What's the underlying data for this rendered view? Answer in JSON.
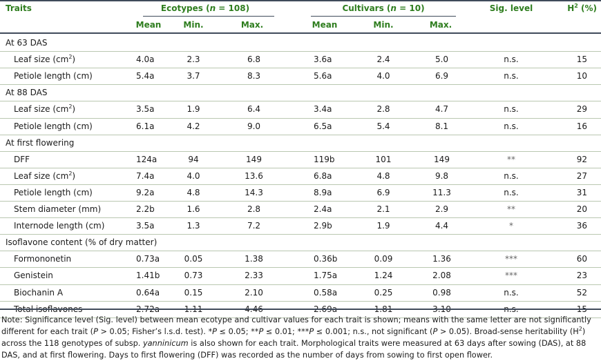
{
  "header": {
    "traits": "Traits",
    "ecotypes": "Ecotypes (n = 108)",
    "cultivars": "Cultivars (n = 10)",
    "sig": "Sig. level",
    "h2": "H2 (%)",
    "mean": "Mean",
    "min": "Min.",
    "max": "Max."
  },
  "sections": [
    {
      "title": "At 63 DAS",
      "rows": [
        {
          "trait": "Leaf size (cm2)",
          "e_mean": "4.0a",
          "e_min": "2.3",
          "e_max": "6.8",
          "c_mean": "3.6a",
          "c_min": "2.4",
          "c_max": "5.0",
          "sig": "n.s.",
          "h2": "15"
        },
        {
          "trait": "Petiole length (cm)",
          "e_mean": "5.4a",
          "e_min": "3.7",
          "e_max": "8.3",
          "c_mean": "5.6a",
          "c_min": "4.0",
          "c_max": "6.9",
          "sig": "n.s.",
          "h2": "10"
        }
      ]
    },
    {
      "title": "At 88 DAS",
      "rows": [
        {
          "trait": "Leaf size (cm2)",
          "e_mean": "3.5a",
          "e_min": "1.9",
          "e_max": "6.4",
          "c_mean": "3.4a",
          "c_min": "2.8",
          "c_max": "4.7",
          "sig": "n.s.",
          "h2": "29"
        },
        {
          "trait": "Petiole length (cm)",
          "e_mean": "6.1a",
          "e_min": "4.2",
          "e_max": "9.0",
          "c_mean": "6.5a",
          "c_min": "5.4",
          "c_max": "8.1",
          "sig": "n.s.",
          "h2": "16"
        }
      ]
    },
    {
      "title": "At first flowering",
      "rows": [
        {
          "trait": "DFF",
          "e_mean": "124a",
          "e_min": "94",
          "e_max": "149",
          "c_mean": "119b",
          "c_min": "101",
          "c_max": "149",
          "sig": "**",
          "h2": "92"
        },
        {
          "trait": "Leaf size (cm2)",
          "e_mean": "7.4a",
          "e_min": "4.0",
          "e_max": "13.6",
          "c_mean": "6.8a",
          "c_min": "4.8",
          "c_max": "9.8",
          "sig": "n.s.",
          "h2": "27"
        },
        {
          "trait": "Petiole length (cm)",
          "e_mean": "9.2a",
          "e_min": "4.8",
          "e_max": "14.3",
          "c_mean": "8.9a",
          "c_min": "6.9",
          "c_max": "11.3",
          "sig": "n.s.",
          "h2": "31"
        },
        {
          "trait": "Stem diameter (mm)",
          "e_mean": "2.2b",
          "e_min": "1.6",
          "e_max": "2.8",
          "c_mean": "2.4a",
          "c_min": "2.1",
          "c_max": "2.9",
          "sig": "**",
          "h2": "20"
        },
        {
          "trait": "Internode length (cm)",
          "e_mean": "3.5a",
          "e_min": "1.3",
          "e_max": "7.2",
          "c_mean": "2.9b",
          "c_min": "1.9",
          "c_max": "4.4",
          "sig": "*",
          "h2": "36"
        }
      ]
    },
    {
      "title": "Isoflavone content (% of dry matter)",
      "rows": [
        {
          "trait": "Formononetin",
          "e_mean": "0.73a",
          "e_min": "0.05",
          "e_max": "1.38",
          "c_mean": "0.36b",
          "c_min": "0.09",
          "c_max": "1.36",
          "sig": "***",
          "h2": "60"
        },
        {
          "trait": "Genistein",
          "e_mean": "1.41b",
          "e_min": "0.73",
          "e_max": "2.33",
          "c_mean": "1.75a",
          "c_min": "1.24",
          "c_max": "2.08",
          "sig": "***",
          "h2": "23"
        },
        {
          "trait": "Biochanin A",
          "e_mean": "0.64a",
          "e_min": "0.15",
          "e_max": "2.10",
          "c_mean": "0.58a",
          "c_min": "0.25",
          "c_max": "0.98",
          "sig": "n.s.",
          "h2": "52"
        },
        {
          "trait": "Total isoflavones",
          "e_mean": "2.72a",
          "e_min": "1.11",
          "e_max": "4.46",
          "c_mean": "2.69a",
          "c_min": "1.81",
          "c_max": "3.10",
          "sig": "n.s.",
          "h2": "15"
        }
      ]
    }
  ],
  "note": "Note: Significance level (Sig. level) between mean ecotype and cultivar values for each trait is shown; means with the same letter are not significantly different for each trait (P > 0.05; Fisher’s l.s.d. test). *P ≤ 0.05; **P ≤ 0.01; ***P ≤ 0.001; n.s., not significant (P > 0.05). Broad-sense heritability (H2) across the 118 genotypes of subsp. yanninicum is also shown for each trait. Morphological traits were measured at 63 days after sowing (DAS), at 88 DAS, and at first flowering. Days to first flowering (DFF) was recorded as the number of days from sowing to first open flower."
}
